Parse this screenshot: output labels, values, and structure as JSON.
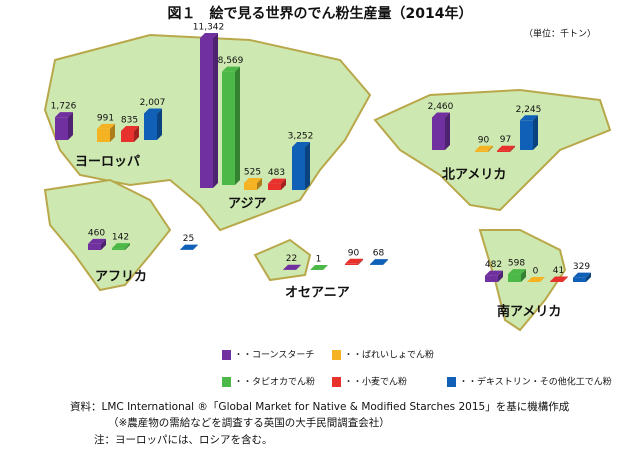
{
  "chart_data": {
    "type": "bar",
    "title": "図１　絵で見る世界のでん粉生産量（2014年）",
    "unit_note": "（単位：千トン）",
    "categories": [
      "ヨーロッパ",
      "アジア",
      "北アメリカ",
      "アフリカ",
      "オセアニア",
      "南アメリカ"
    ],
    "series": [
      {
        "name": "・・コーンスターチ",
        "color": "#7030a0",
        "values": [
          1726,
          11342,
          2460,
          460,
          22,
          482
        ],
        "value_labels": [
          "1,726",
          "11,342",
          "2,460",
          "460",
          "22",
          "482"
        ]
      },
      {
        "name": "・・ばれいしょでん粉",
        "color": "#f5b324",
        "values": [
          991,
          525,
          90,
          null,
          null,
          0
        ],
        "value_labels": [
          "991",
          "525",
          "90",
          null,
          null,
          "0"
        ]
      },
      {
        "name": "・・タピオカでん粉",
        "color": "#4cb848",
        "values": [
          null,
          8569,
          null,
          142,
          1,
          598
        ],
        "value_labels": [
          null,
          "8,569",
          null,
          "142",
          "1",
          "598"
        ]
      },
      {
        "name": "・・小麦でん粉",
        "color": "#e8302d",
        "values": [
          835,
          483,
          97,
          null,
          90,
          41
        ],
        "value_labels": [
          "835",
          "483",
          "97",
          null,
          "90",
          "41"
        ]
      },
      {
        "name": "・・デキストリン・その他化工でん粉",
        "color": "#1060b8",
        "values": [
          2007,
          3252,
          2245,
          25,
          68,
          329
        ],
        "value_labels": [
          "2,007",
          "3,252",
          "2,245",
          "25",
          "68",
          "329"
        ]
      }
    ],
    "notes": [
      "資料：LMC International ®「Global Market for Native & Modified Starches 2015」を基に機構作成",
      "（※農産物の需給などを調査する英国の大手民間調査会社）",
      "注：ヨーロッパには、ロシアを含む。"
    ]
  }
}
